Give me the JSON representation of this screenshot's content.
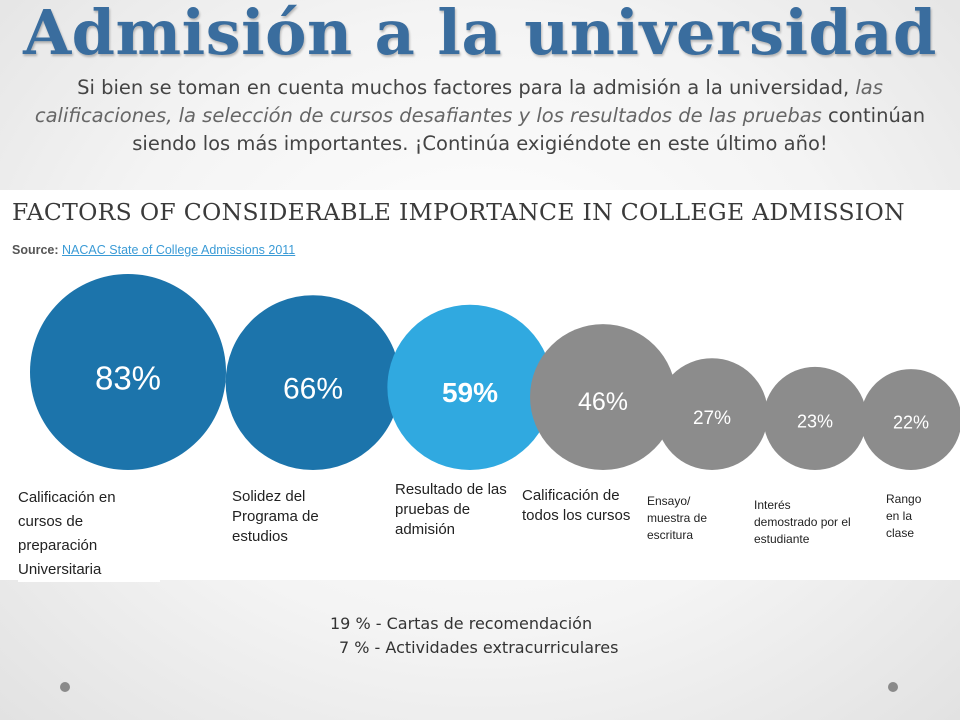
{
  "title": "Admisión a la universidad",
  "intro": {
    "part1": "Si bien se toman en cuenta muchos factores para la admisión a la universidad, ",
    "part2_italic": "las calificaciones, la selección de cursos desafiantes y los resultados de las pruebas",
    "part3": " continúan siendo los más importantes.  ¡Continúa exigiéndote en este último año!"
  },
  "chart_data": {
    "type": "bubble",
    "title": "FACTORS OF CONSIDERABLE IMPORTANCE IN COLLEGE ADMISSION",
    "source_label": "Source:",
    "source_link": "NACAC State of College Admissions 2011",
    "categories": [
      "Calificación en cursos de preparación Universitaria",
      "Solidez del Programa de estudios",
      "Resultado de las pruebas de admisión",
      "Calificación de todos los cursos",
      "Ensayo/ muestra de escritura",
      "Interés demostrado por el estudiante",
      "Rango en la clase"
    ],
    "values": [
      83,
      66,
      59,
      46,
      27,
      23,
      22
    ],
    "value_labels": [
      "83%",
      "66%",
      "59%",
      "46%",
      "27%",
      "23%",
      "22%"
    ],
    "colors": [
      "#1c74ab",
      "#1c74ab",
      "#30a9e0",
      "#8c8c8c",
      "#8c8c8c",
      "#8c8c8c",
      "#8c8c8c"
    ]
  },
  "extra": {
    "line1": "19 % - Cartas de recomendación",
    "line2": "7 % - Actividades extracurriculares"
  }
}
